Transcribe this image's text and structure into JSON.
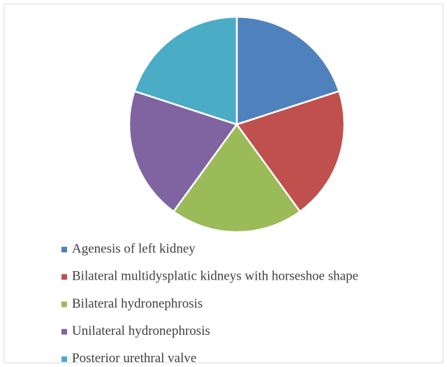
{
  "chart_data": {
    "type": "pie",
    "categories": [
      "Agenesis of left kidney",
      "Bilateral multidysplatic kidneys with horseshoe shape",
      "Bilateral hydronephrosis",
      "Unilateral hydronephrosis",
      "Posterior urethral valve"
    ],
    "values": [
      20,
      20,
      20,
      20,
      20
    ],
    "colors": [
      "#4f81bd",
      "#c0504d",
      "#9bbb59",
      "#8064a2",
      "#4bacc6"
    ],
    "legend": "bottom"
  }
}
